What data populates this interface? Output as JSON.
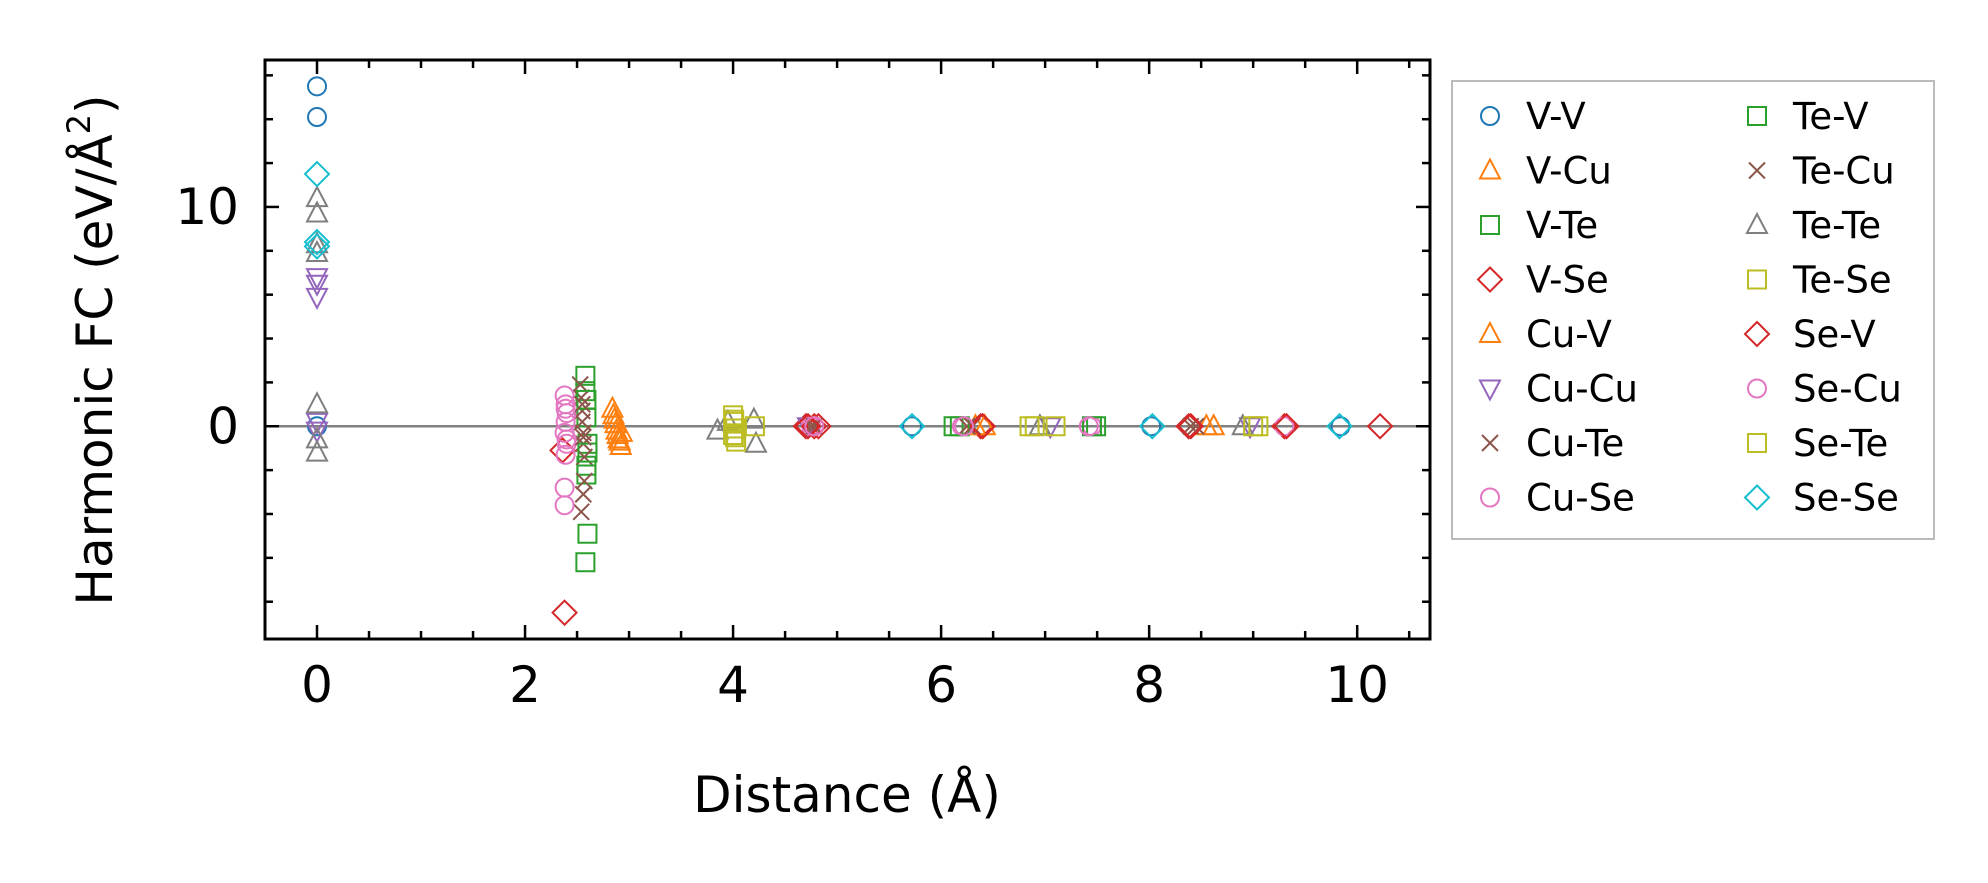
{
  "chart_data": {
    "type": "scatter",
    "title": "",
    "xlabel": "Distance (Å)",
    "ylabel_main": "Harmonic FC (eV/Å",
    "ylabel_sup": "2",
    "ylabel_close": ")",
    "xlim": [
      -0.5,
      10.7
    ],
    "ylim": [
      -9.7,
      16.7
    ],
    "xticks": [
      0,
      2,
      4,
      6,
      8,
      10
    ],
    "yticks": [
      0,
      10
    ],
    "xtick_labels": [
      "0",
      "2",
      "4",
      "6",
      "8",
      "10"
    ],
    "ytick_labels": [
      "0",
      "10"
    ],
    "legend_position": "outside-right",
    "zero_line": true,
    "series": [
      {
        "name": "V-V",
        "marker": "circle",
        "color": "#1f77b4",
        "x": [
          0,
          0,
          0,
          5.72,
          8.02,
          9.84
        ],
        "y": [
          15.5,
          14.1,
          0,
          0,
          0,
          0
        ]
      },
      {
        "name": "V-Cu",
        "marker": "triangle-up",
        "color": "#ff7f0e",
        "x": [
          2.84,
          2.86,
          2.88,
          2.9,
          2.92,
          6.33,
          8.55
        ],
        "y": [
          0.8,
          0.3,
          -0.2,
          -0.6,
          -0.9,
          0,
          0
        ]
      },
      {
        "name": "V-Te",
        "marker": "square",
        "color": "#2ca02c",
        "x": [
          2.58,
          2.58,
          2.59,
          2.6,
          2.59,
          2.6,
          2.58,
          6.12,
          7.49
        ],
        "y": [
          2.3,
          1.6,
          0.4,
          -0.8,
          -1.8,
          -4.9,
          -6.2,
          0,
          0
        ]
      },
      {
        "name": "V-Se",
        "marker": "diamond",
        "color": "#d62728",
        "x": [
          2.38,
          2.36,
          4.7,
          4.82,
          6.38,
          8.38,
          9.3,
          10.22
        ],
        "y": [
          -8.5,
          -1.1,
          0,
          0,
          0,
          0,
          0,
          0
        ]
      },
      {
        "name": "Cu-V",
        "marker": "triangle-up",
        "color": "#ff7f0e",
        "x": [
          2.85,
          2.87,
          2.89,
          2.91,
          2.93,
          6.42,
          8.62
        ],
        "y": [
          0.5,
          0.1,
          -0.4,
          -0.7,
          -0.3,
          0,
          0
        ]
      },
      {
        "name": "Cu-Cu",
        "marker": "triangle-down",
        "color": "#9467bd",
        "x": [
          0,
          0,
          0,
          0,
          0,
          4.72,
          7.05,
          8.97
        ],
        "y": [
          6.8,
          6.5,
          5.9,
          0.2,
          -0.2,
          0,
          0,
          0
        ]
      },
      {
        "name": "Cu-Te",
        "marker": "x",
        "color": "#8c564b",
        "x": [
          2.53,
          2.54,
          2.55,
          2.55,
          2.56,
          2.56,
          2.57,
          2.56,
          2.54,
          4.75,
          6.25,
          8.4
        ],
        "y": [
          1.9,
          1.3,
          0.7,
          0.2,
          -0.3,
          -0.8,
          -1.4,
          -3.1,
          -3.9,
          0,
          0,
          0
        ]
      },
      {
        "name": "Cu-Se",
        "marker": "circle",
        "color": "#e377c2",
        "x": [
          2.38,
          2.39,
          2.4,
          2.39,
          2.38,
          2.4,
          2.39,
          2.38,
          2.38,
          4.75,
          6.2,
          7.45,
          9.3
        ],
        "y": [
          1.4,
          1.0,
          0.6,
          0.2,
          -0.3,
          -0.8,
          -1.3,
          -2.8,
          -3.6,
          0,
          0,
          0,
          0
        ]
      },
      {
        "name": "Te-V",
        "marker": "square",
        "color": "#2ca02c",
        "x": [
          2.59,
          2.6,
          2.59,
          6.18,
          7.45
        ],
        "y": [
          1.2,
          -1.2,
          -2.2,
          0,
          0
        ]
      },
      {
        "name": "Te-Cu",
        "marker": "x",
        "color": "#8c564b",
        "x": [
          2.55,
          2.56,
          2.57,
          4.78,
          6.3,
          8.45
        ],
        "y": [
          1.0,
          -0.5,
          -2.5,
          0,
          0,
          0
        ]
      },
      {
        "name": "Te-Te",
        "marker": "triangle-up",
        "color": "#7f7f7f",
        "x": [
          0,
          0,
          0,
          0,
          0,
          0,
          0,
          3.85,
          3.95,
          4.2,
          4.22,
          6.95,
          8.9
        ],
        "y": [
          10.4,
          9.7,
          8.3,
          7.9,
          1.0,
          -0.6,
          -1.2,
          -0.2,
          0.2,
          0.3,
          -0.8,
          0,
          0
        ]
      },
      {
        "name": "Te-Se",
        "marker": "square",
        "color": "#bcbd22",
        "x": [
          4.0,
          4.01,
          4.02,
          4.0,
          4.03,
          4.21,
          6.85,
          9.0
        ],
        "y": [
          0.5,
          0.2,
          -0.1,
          -0.4,
          -0.7,
          0,
          0,
          0
        ]
      },
      {
        "name": "Se-V",
        "marker": "diamond",
        "color": "#d62728",
        "x": [
          4.72,
          4.78,
          6.4,
          8.4,
          9.32
        ],
        "y": [
          0,
          0,
          0,
          0,
          0
        ]
      },
      {
        "name": "Se-Cu",
        "marker": "circle",
        "color": "#e377c2",
        "x": [
          2.39,
          2.4,
          4.78,
          6.22,
          7.42
        ],
        "y": [
          0.8,
          -0.6,
          0,
          0,
          0
        ]
      },
      {
        "name": "Se-Te",
        "marker": "square",
        "color": "#bcbd22",
        "x": [
          4.01,
          4.02,
          6.9,
          7.1,
          9.05
        ],
        "y": [
          0.3,
          -0.5,
          0,
          0,
          0
        ]
      },
      {
        "name": "Se-Se",
        "marker": "diamond",
        "color": "#17becf",
        "x": [
          0,
          0,
          0,
          5.72,
          8.03,
          9.83
        ],
        "y": [
          11.5,
          8.4,
          8.2,
          0,
          0,
          0
        ]
      }
    ]
  }
}
